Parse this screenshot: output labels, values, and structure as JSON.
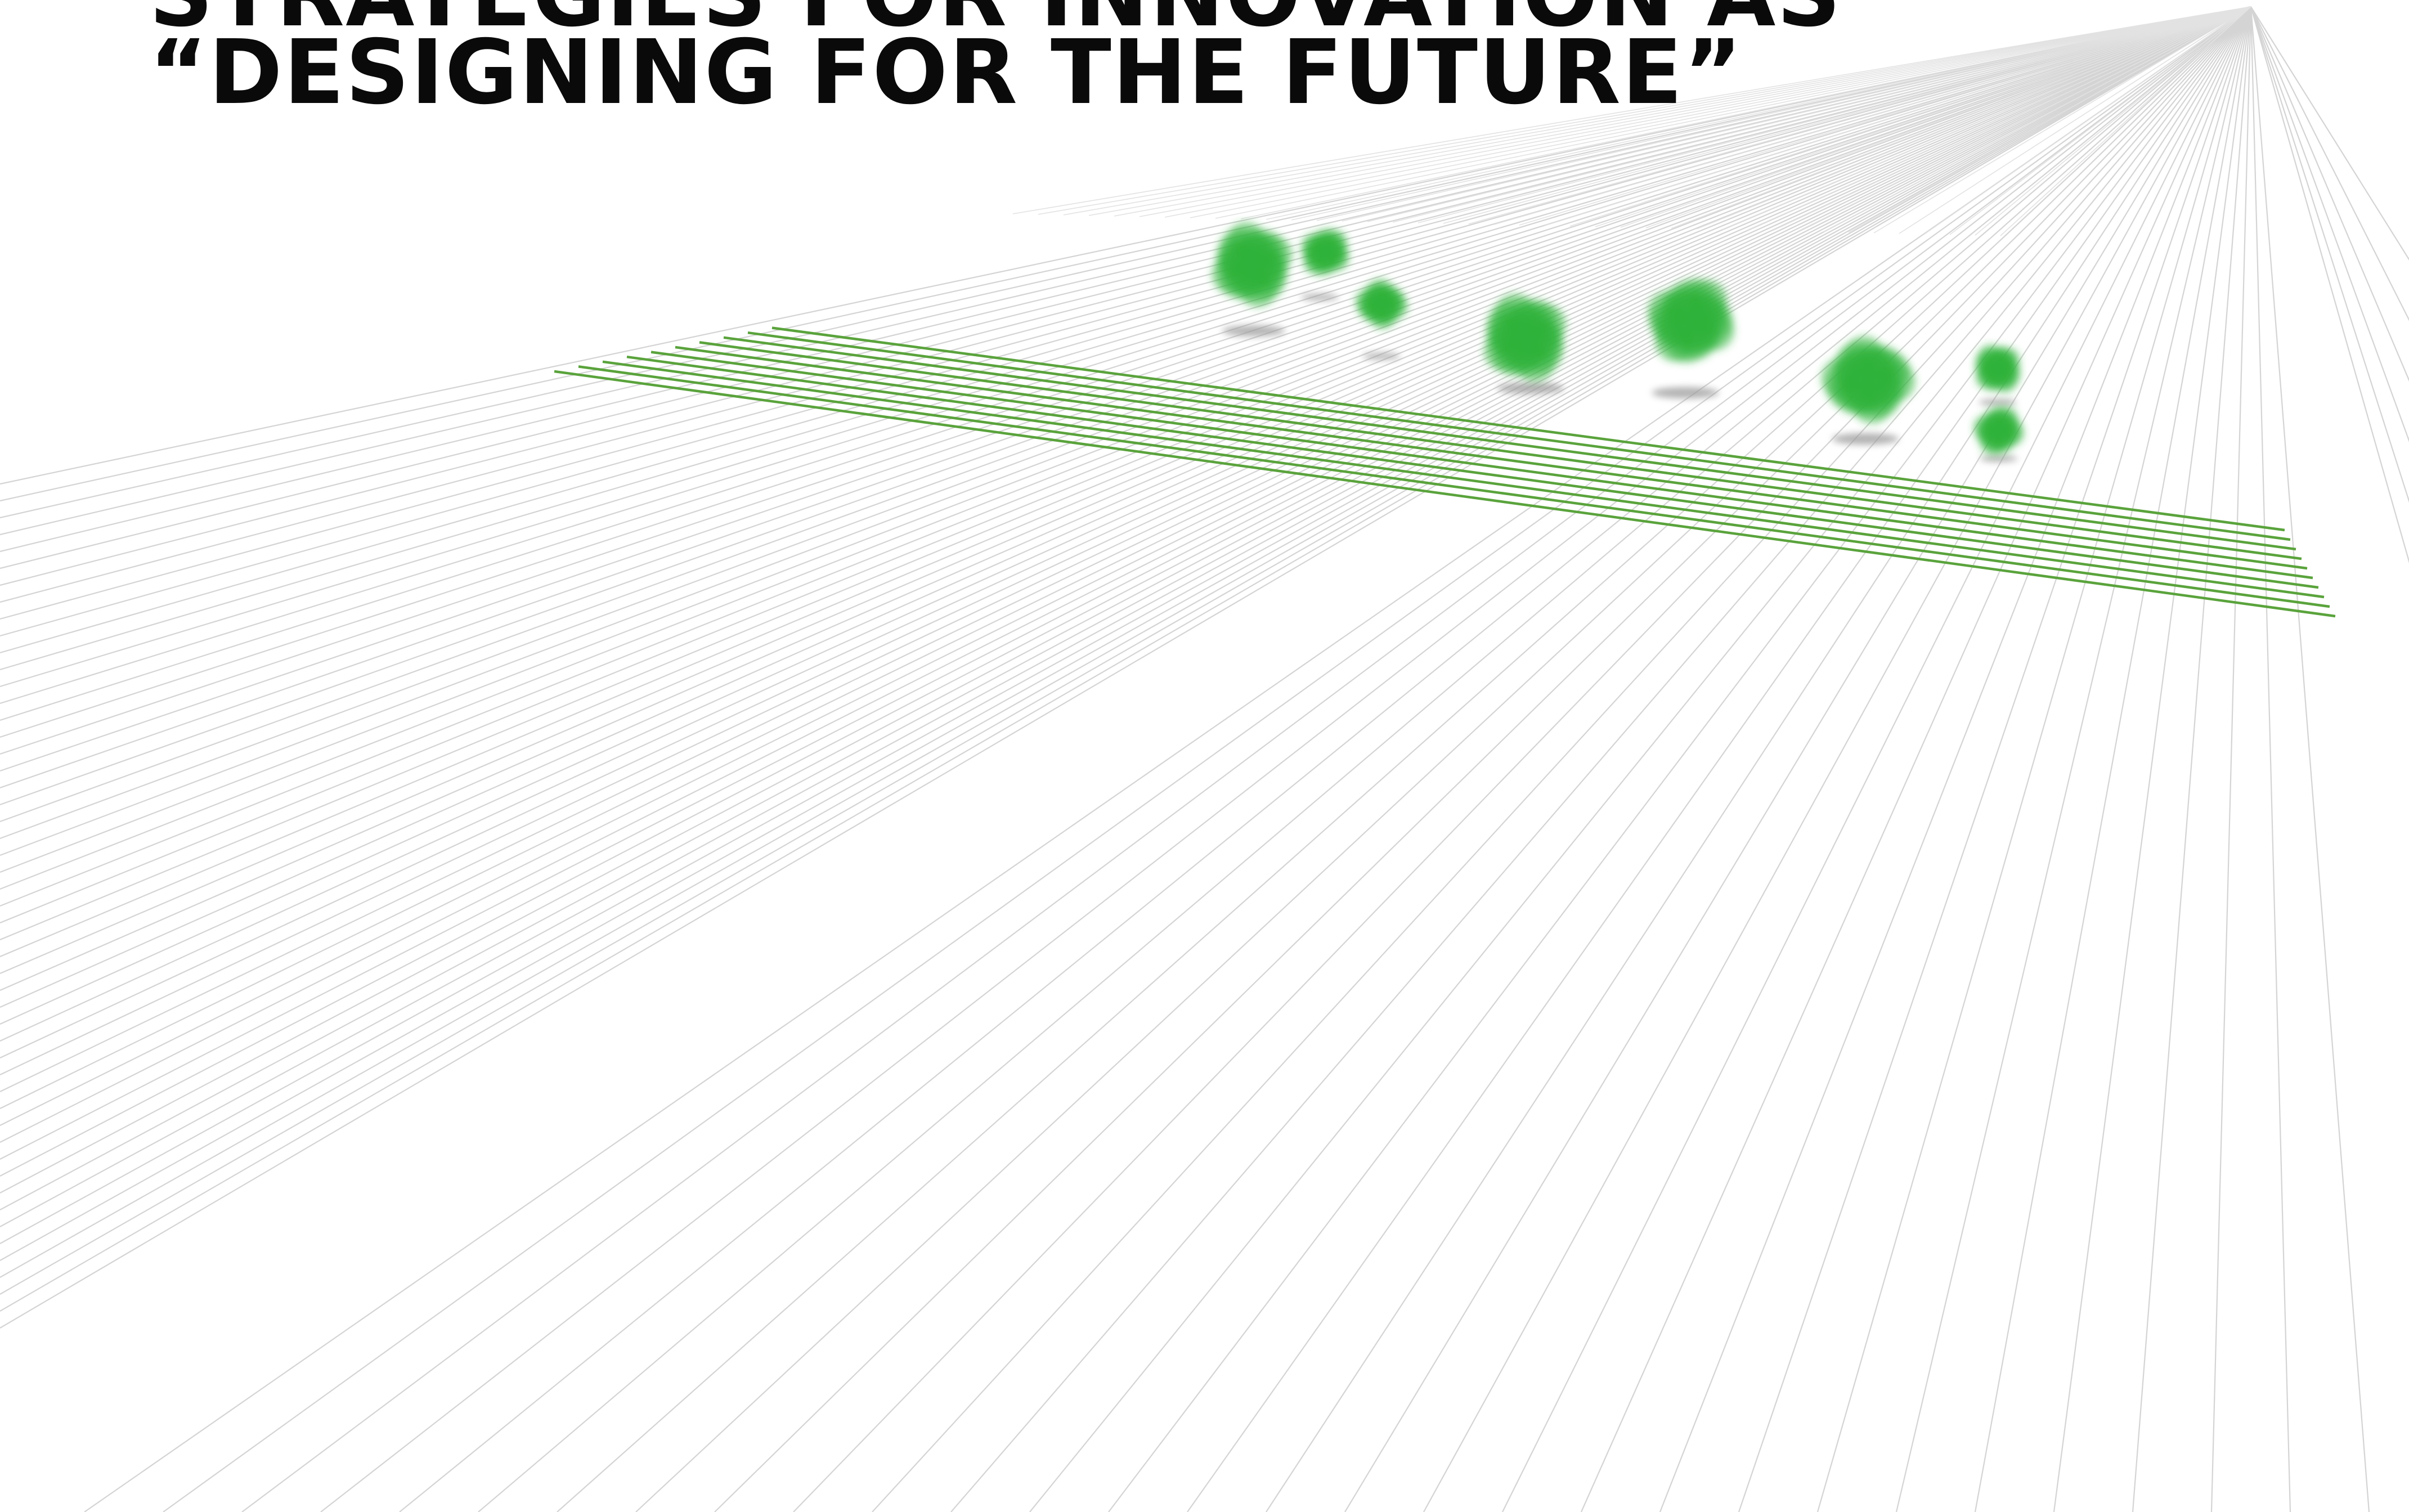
{
  "title": {
    "line1": "STRATEGIES FOR INNOVATION AS",
    "line2": "“DESIGNING FOR THE FUTURE”"
  },
  "colors": {
    "background": "#ffffff",
    "title_text": "#0a0a0a",
    "grid_lines": "#d4d4d4",
    "green_lines": "#5aa33c",
    "tree_foliage": "#2fb23a",
    "tree_shadow": "#9a9a9a"
  },
  "illustration": {
    "grid": "perspective-line-field",
    "band": "green-parallel-lines",
    "trees": "bush-icon"
  }
}
